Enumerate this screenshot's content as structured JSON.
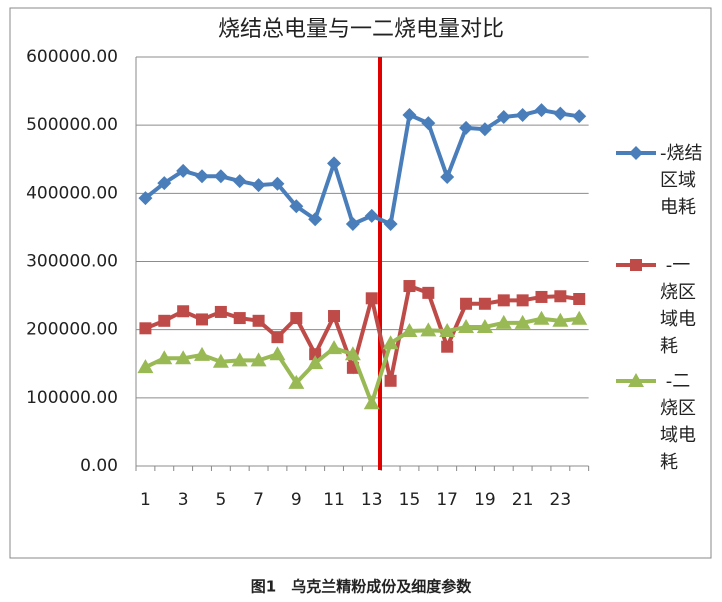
{
  "chart_data": {
    "type": "line",
    "title": "烧结总电量与一二烧电量对比",
    "caption": "图1　乌克兰精粉成份及细度参数",
    "categories": [
      1,
      null,
      3,
      null,
      5,
      null,
      7,
      null,
      9,
      null,
      11,
      null,
      13,
      null,
      15,
      null,
      17,
      null,
      19,
      null,
      21,
      null,
      23,
      null
    ],
    "ylim": [
      0,
      600000
    ],
    "yticks": [
      {
        "value": 0,
        "label": "0.00"
      },
      {
        "value": 100000,
        "label": "100000.00"
      },
      {
        "value": 200000,
        "label": "200000.00"
      },
      {
        "value": 300000,
        "label": "300000.00"
      },
      {
        "value": 400000,
        "label": "400000.00"
      },
      {
        "value": 500000,
        "label": "500000.00"
      },
      {
        "value": 600000,
        "label": "600000.00"
      }
    ],
    "grid": true,
    "legend": "right",
    "series": [
      {
        "name": "-烧结区域电耗",
        "color": "#4a7ebb",
        "marker": "diamond",
        "values": [
          393000,
          415000,
          433000,
          425000,
          425000,
          418000,
          412000,
          414000,
          381000,
          362000,
          444000,
          355000,
          367000,
          355000,
          515000,
          503000,
          424000,
          496000,
          494000,
          512000,
          515000,
          522000,
          517000,
          513000
        ]
      },
      {
        "name": " -一烧区域电耗",
        "color": "#be4b48",
        "marker": "square",
        "values": [
          202000,
          213000,
          227000,
          215000,
          226000,
          217000,
          213000,
          189000,
          217000,
          164000,
          220000,
          144000,
          246000,
          125000,
          264000,
          254000,
          175000,
          238000,
          238000,
          243000,
          243000,
          248000,
          249000,
          245000
        ]
      },
      {
        "name": " -二烧区域电耗",
        "color": "#98b954",
        "marker": "triangle",
        "values": [
          145000,
          158000,
          158000,
          163000,
          153000,
          155000,
          155000,
          164000,
          122000,
          151000,
          173000,
          164000,
          92000,
          180000,
          198000,
          199000,
          198000,
          204000,
          204000,
          210000,
          210000,
          216000,
          213000,
          216000
        ]
      }
    ]
  }
}
